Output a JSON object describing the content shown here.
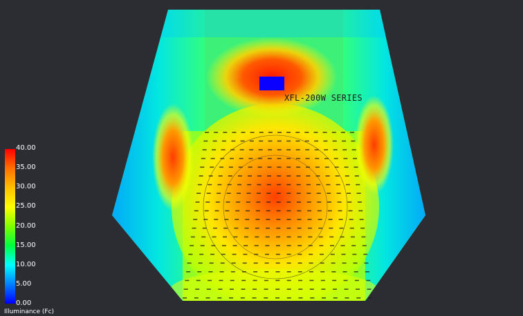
{
  "fixture_label": "XFL-200W SERIES",
  "legend": {
    "title": "Illuminance (Fc)",
    "ticks": [
      "40.00",
      "35.00",
      "30.00",
      "25.00",
      "20.00",
      "15.00",
      "10.00",
      "5.00",
      "0.00"
    ]
  },
  "fixture_color": "#0a00ff",
  "point_grid_note": "field of illuminance readings (values too small to read)"
}
